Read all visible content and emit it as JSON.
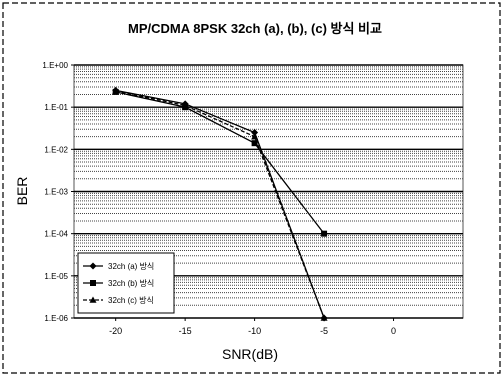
{
  "chart_data": {
    "type": "line",
    "title": "MP/CDMA 8PSK 32ch  (a), (b), (c) 방식 비교",
    "xlabel": "SNR(dB)",
    "ylabel": "BER",
    "y_scale": "log",
    "ylim": [
      1e-06,
      1
    ],
    "xlim": [
      -23,
      5
    ],
    "grid": true,
    "legend_position": "bottom-left",
    "x_tick_labels": [
      "-20",
      "-15",
      "-10",
      "-5",
      "0"
    ],
    "x_ticks": [
      -20,
      -15,
      -10,
      -5,
      0
    ],
    "y_tick_labels": [
      "1.E+00",
      "1.E-01",
      "1.E-02",
      "1.E-03",
      "1.E-04",
      "1.E-05",
      "1.E-06"
    ],
    "y_ticks": [
      1,
      0.1,
      0.01,
      0.001,
      0.0001,
      1e-05,
      1e-06
    ],
    "series": [
      {
        "name": "32ch (a) 방식",
        "marker": "diamond",
        "color": "#000000",
        "dash": "",
        "x": [
          -20,
          -15,
          -10,
          -5
        ],
        "y": [
          0.25,
          0.12,
          0.025,
          1e-06
        ]
      },
      {
        "name": "32ch (b) 방식",
        "marker": "square",
        "color": "#000000",
        "dash": "",
        "x": [
          -20,
          -15,
          -10,
          -5
        ],
        "y": [
          0.23,
          0.1,
          0.014,
          0.0001
        ]
      },
      {
        "name": "32ch (c) 방식",
        "marker": "triangle",
        "color": "#000000",
        "dash": "4,2",
        "x": [
          -20,
          -15,
          -10,
          -5
        ],
        "y": [
          0.24,
          0.11,
          0.02,
          1e-06
        ]
      }
    ]
  }
}
